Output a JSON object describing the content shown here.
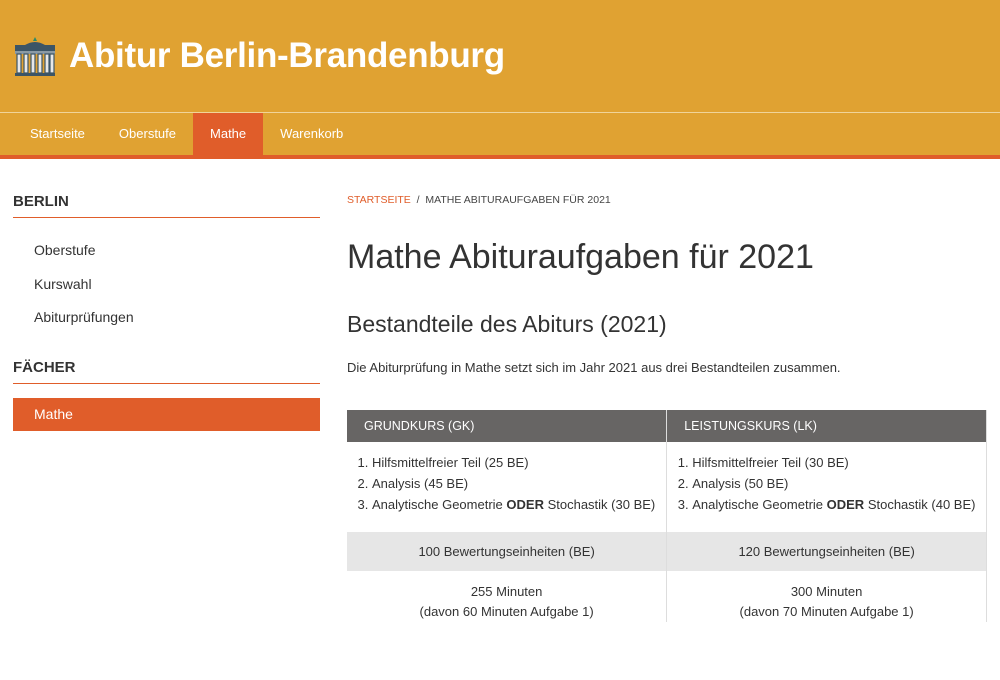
{
  "site": {
    "title": "Abitur Berlin-Brandenburg",
    "logo_icon": "brandenburg-gate-icon"
  },
  "nav": [
    {
      "label": "Startseite"
    },
    {
      "label": "Oberstufe"
    },
    {
      "label": "Mathe",
      "active": true
    },
    {
      "label": "Warenkorb"
    }
  ],
  "sidebar": {
    "berlin_heading": "BERLIN",
    "berlin_items": [
      "Oberstufe",
      "Kurswahl",
      "Abiturprüfungen"
    ],
    "faecher_heading": "FÄCHER",
    "faecher_items": [
      "Mathe"
    ]
  },
  "breadcrumb": {
    "home": "STARTSEITE",
    "sep": "/",
    "current": "MATHE ABITURAUFGABEN FÜR 2021"
  },
  "page_title": "Mathe Abituraufgaben für 2021",
  "section_title": "Bestandteile des Abiturs (2021)",
  "intro": "Die Abiturprüfung in Mathe setzt sich im Jahr 2021 aus drei Bestandteilen zusammen.",
  "table": {
    "headers": [
      "GRUNDKURS (GK)",
      "LEISTUNGSKURS (LK)"
    ],
    "gk_items": [
      {
        "pre": "Hilfsmittelfreier Teil (25 BE)"
      },
      {
        "pre": "Analysis (45 BE)"
      },
      {
        "pre": "Analytische Geometrie ",
        "bold": "ODER",
        "post": " Stochastik (30 BE)"
      }
    ],
    "lk_items": [
      {
        "pre": "Hilfsmittelfreier Teil (30 BE)"
      },
      {
        "pre": "Analysis (50 BE)"
      },
      {
        "pre": "Analytische Geometrie ",
        "bold": "ODER",
        "post": " Stochastik (40 BE)"
      }
    ],
    "be": [
      "100 Bewertungseinheiten (BE)",
      "120 Bewertungseinheiten (BE)"
    ],
    "minutes": [
      "255 Minuten",
      "300 Minuten"
    ],
    "minutes_note": [
      "(davon 60 Minuten Aufgabe 1)",
      "(davon 70 Minuten Aufgabe 1)"
    ]
  },
  "colors": {
    "header": "#e0a232",
    "accent": "#e05d2a",
    "table_header": "#676564"
  }
}
